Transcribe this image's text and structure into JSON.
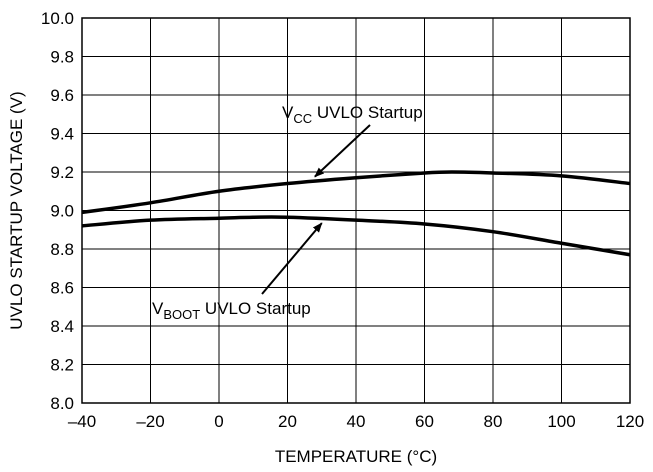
{
  "chart_data": {
    "type": "line",
    "xlabel": "TEMPERATURE (°C)",
    "ylabel": "UVLO STARTUP VOLTAGE (V)",
    "xlim": [
      -40,
      120
    ],
    "ylim": [
      8.0,
      10.0
    ],
    "x_ticks": [
      "–40",
      "–20",
      "0",
      "20",
      "40",
      "60",
      "80",
      "100",
      "120"
    ],
    "y_ticks": [
      "8.0",
      "8.2",
      "8.4",
      "8.6",
      "8.8",
      "9.0",
      "9.2",
      "9.4",
      "9.6",
      "9.8",
      "10.0"
    ],
    "grid": true,
    "series": [
      {
        "name": "VCC UVLO Startup",
        "x": [
          -40,
          -20,
          0,
          20,
          40,
          60,
          68,
          80,
          100,
          120
        ],
        "values": [
          8.99,
          9.04,
          9.1,
          9.14,
          9.17,
          9.195,
          9.2,
          9.195,
          9.18,
          9.14
        ]
      },
      {
        "name": "VBOOT UVLO Startup",
        "x": [
          -40,
          -20,
          0,
          10,
          20,
          40,
          60,
          80,
          100,
          120
        ],
        "values": [
          8.92,
          8.95,
          8.96,
          8.965,
          8.965,
          8.95,
          8.93,
          8.89,
          8.83,
          8.77
        ]
      }
    ],
    "annotations": [
      {
        "main": "V",
        "sub": "CC",
        "rest": " UVLO Startup",
        "target_x": 28,
        "target_y": 9.155
      },
      {
        "main": "V",
        "sub": "BOOT",
        "rest": " UVLO Startup",
        "target_x": 30,
        "target_y": 8.955
      }
    ]
  }
}
